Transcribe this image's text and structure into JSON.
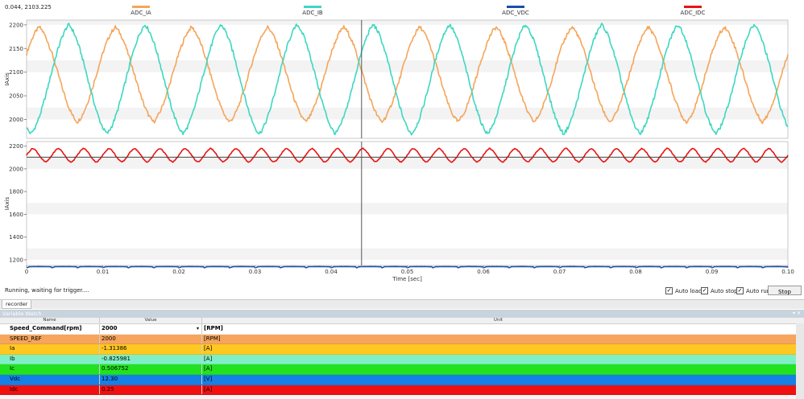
{
  "cursor_readout": "0.044, 2103.225",
  "status": "Running, waiting for trigger....",
  "options": [
    {
      "label": "Auto load",
      "checked": true
    },
    {
      "label": "Auto stop",
      "checked": true
    },
    {
      "label": "Auto run",
      "checked": true
    }
  ],
  "stop_label": "Stop",
  "tab_label": "recorder",
  "watch": {
    "title": "Variable Watch",
    "title_buttons": "▾ ✕",
    "headers": {
      "name": "Name",
      "value": "Value",
      "unit": "Unit"
    },
    "rows": [
      {
        "name": "Speed_Command[rpm]",
        "value": "2000",
        "unit": "[RPM]",
        "bg": "#ffffff",
        "bold": true,
        "dropdown": true
      },
      {
        "name": "SPEED_REF",
        "value": "2000",
        "unit": "[RPM]",
        "bg": "#f7a55c"
      },
      {
        "name": "Ia",
        "value": "-1.31386",
        "unit": "[A]",
        "bg": "#ffc820"
      },
      {
        "name": "Ib",
        "value": "-0.825981",
        "unit": "[A]",
        "bg": "#7ef0c8"
      },
      {
        "name": "Ic",
        "value": "0.506752",
        "unit": "[A]",
        "bg": "#22e11e"
      },
      {
        "name": "Vdc",
        "value": "12.30",
        "unit": "[V]",
        "bg": "#1580e6"
      },
      {
        "name": "Idc",
        "value": "0.25",
        "unit": "[A]",
        "bg": "#f01010"
      }
    ]
  },
  "chart_data": [
    {
      "type": "line",
      "xlabel": "Time [sec]",
      "ylabel": "IAxis",
      "xlim": [
        0,
        0.1
      ],
      "ylim": [
        1960,
        2210
      ],
      "x_ticks": [
        "0",
        "0.01",
        "0.02",
        "0.03",
        "0.04",
        "0.05",
        "0.06",
        "0.07",
        "0.08",
        "0.09",
        "0.10"
      ],
      "y_ticks": [
        "2000",
        "2050",
        "2100",
        "2150",
        "2200"
      ],
      "cursor_x": 0.044,
      "series": [
        {
          "name": "ADC_IA",
          "color": "#f5a55a",
          "offset": 2095,
          "amplitude": 100,
          "freq_hz": 100,
          "phase_deg": 30
        },
        {
          "name": "ADC_IB",
          "color": "#3ed7c0",
          "offset": 2085,
          "amplitude": 115,
          "freq_hz": 100,
          "phase_deg": -110
        }
      ]
    },
    {
      "type": "line",
      "xlabel": "Time [sec]",
      "ylabel": "IAxis",
      "xlim": [
        0,
        0.1
      ],
      "ylim": [
        1150,
        2240
      ],
      "x_ticks": [
        "0",
        "0.01",
        "0.02",
        "0.03",
        "0.04",
        "0.05",
        "0.06",
        "0.07",
        "0.08",
        "0.09",
        "0.10"
      ],
      "y_ticks": [
        "1200",
        "1400",
        "1600",
        "1800",
        "2000",
        "2200"
      ],
      "cursor_x": 0.044,
      "cursor_y": 2103.225,
      "series": [
        {
          "name": "ADC_VDC",
          "color": "#1a4fa5",
          "offset": 1138,
          "amplitude": 6,
          "freq_hz": 300,
          "phase_deg": 0
        },
        {
          "name": "ADC_IDC",
          "color": "#e81414",
          "offset": 2120,
          "amplitude": 60,
          "freq_hz": 300,
          "phase_deg": 0
        }
      ]
    }
  ]
}
